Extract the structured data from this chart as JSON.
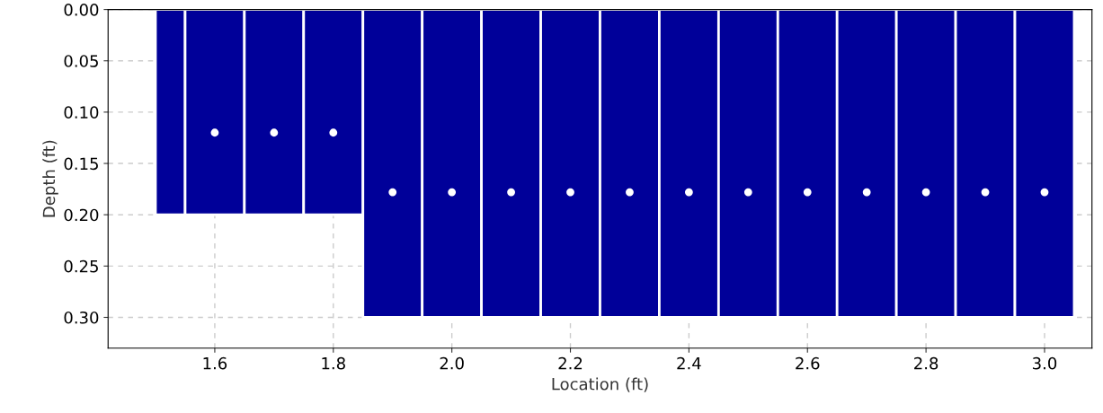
{
  "chart_data": {
    "type": "histogram",
    "xlabel": "Location (ft)",
    "ylabel": "Depth (ft)",
    "series": [
      {
        "color": "#000099",
        "bins": [
          1.5,
          1.55,
          1.65,
          1.75,
          1.85,
          1.95,
          2.05,
          2.15,
          2.25,
          2.35,
          2.45,
          2.55,
          2.65,
          2.75,
          2.85,
          2.95,
          3.05
        ],
        "values": [
          0.2,
          0.2,
          0.2,
          0.2,
          0.3,
          0.3,
          0.3,
          0.3,
          0.3,
          0.3,
          0.3,
          0.3,
          0.3,
          0.3,
          0.3,
          0.3
        ]
      },
      {
        "type": "scatter",
        "color": "#ffffff",
        "marker": "circle",
        "x": [
          1.6,
          1.7,
          1.8,
          1.9,
          2.0,
          2.1,
          2.2,
          2.3,
          2.4,
          2.5,
          2.6,
          2.7,
          2.8,
          2.9,
          3.0
        ],
        "values": [
          0.12,
          0.12,
          0.12,
          0.178,
          0.178,
          0.178,
          0.178,
          0.178,
          0.178,
          0.178,
          0.178,
          0.178,
          0.178,
          0.178,
          0.178
        ]
      }
    ],
    "xlim": [
      1.42,
      3.08
    ],
    "ylim": [
      0.33,
      0
    ],
    "xticks": [
      1.6,
      1.8,
      {
        "value": 2,
        "label": "2.0"
      },
      2.2,
      2.4,
      2.6,
      2.8,
      {
        "value": 3,
        "label": "3.0"
      }
    ],
    "yticks": [
      {
        "value": 0,
        "label": "0.00"
      },
      {
        "value": 0.05,
        "label": "0.05"
      },
      {
        "value": 0.1,
        "label": "0.10"
      },
      {
        "value": 0.15,
        "label": "0.15"
      },
      {
        "value": 0.2,
        "label": "0.20"
      },
      {
        "value": 0.25,
        "label": "0.25"
      },
      {
        "value": 0.3,
        "label": "0.30"
      }
    ],
    "grid": true
  }
}
